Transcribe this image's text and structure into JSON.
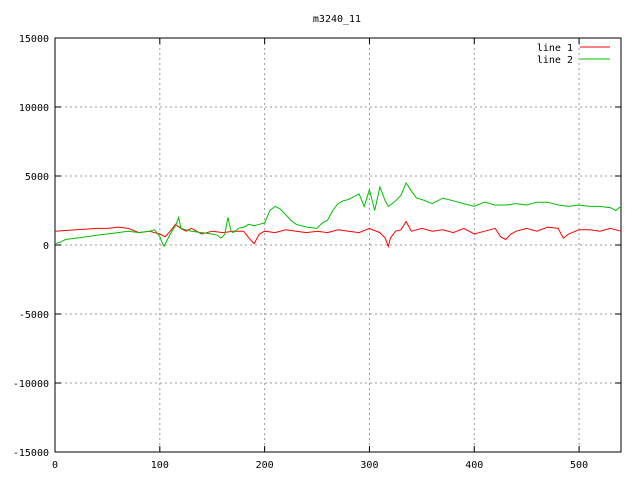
{
  "chart_data": {
    "type": "line",
    "title": "m3240_11",
    "xlabel": "",
    "ylabel": "",
    "xlim": [
      0,
      540
    ],
    "ylim": [
      -15000,
      15000
    ],
    "xticks": [
      0,
      100,
      200,
      300,
      400,
      500
    ],
    "yticks": [
      -15000,
      -10000,
      -5000,
      0,
      5000,
      10000,
      15000
    ],
    "grid": true,
    "legend_position": "top-right",
    "series": [
      {
        "name": "line 1",
        "color": "#ff0000",
        "x": [
          0,
          10,
          20,
          30,
          40,
          50,
          60,
          70,
          80,
          90,
          100,
          105,
          110,
          115,
          120,
          125,
          130,
          140,
          150,
          160,
          170,
          180,
          185,
          190,
          195,
          200,
          210,
          220,
          230,
          240,
          250,
          260,
          270,
          280,
          290,
          300,
          310,
          315,
          318,
          320,
          325,
          330,
          335,
          340,
          350,
          360,
          370,
          380,
          390,
          400,
          410,
          420,
          425,
          430,
          435,
          440,
          450,
          460,
          470,
          480,
          485,
          490,
          500,
          510,
          520,
          530,
          540
        ],
        "y": [
          1000,
          1050,
          1100,
          1150,
          1200,
          1200,
          1300,
          1200,
          900,
          1000,
          800,
          600,
          1000,
          1500,
          1200,
          1000,
          1200,
          800,
          1000,
          900,
          1000,
          1000,
          500,
          100,
          800,
          1000,
          900,
          1100,
          1000,
          900,
          1000,
          900,
          1100,
          1000,
          900,
          1200,
          900,
          500,
          -100,
          500,
          1000,
          1100,
          1700,
          1000,
          1200,
          1000,
          1100,
          900,
          1200,
          800,
          1000,
          1200,
          600,
          400,
          800,
          1000,
          1200,
          1000,
          1300,
          1200,
          500,
          800,
          1100,
          1100,
          1000,
          1200,
          1000
        ]
      },
      {
        "name": "line 2",
        "color": "#00c000",
        "x": [
          0,
          5,
          10,
          20,
          30,
          40,
          50,
          60,
          70,
          80,
          90,
          95,
          100,
          102,
          104,
          110,
          115,
          118,
          120,
          125,
          130,
          140,
          150,
          155,
          158,
          160,
          162,
          165,
          168,
          170,
          175,
          180,
          185,
          190,
          195,
          200,
          205,
          210,
          215,
          220,
          225,
          230,
          240,
          250,
          255,
          260,
          265,
          270,
          275,
          280,
          285,
          290,
          295,
          300,
          305,
          310,
          315,
          318,
          320,
          325,
          330,
          335,
          340,
          345,
          350,
          360,
          370,
          380,
          390,
          400,
          410,
          420,
          430,
          440,
          450,
          460,
          470,
          480,
          490,
          500,
          510,
          520,
          530,
          535,
          540
        ],
        "y": [
          100,
          200,
          400,
          500,
          600,
          700,
          800,
          900,
          1000,
          900,
          1000,
          1100,
          600,
          200,
          -100,
          800,
          1400,
          2000,
          1200,
          1100,
          1000,
          900,
          800,
          700,
          500,
          600,
          800,
          2000,
          1000,
          900,
          1200,
          1300,
          1500,
          1400,
          1500,
          1600,
          2500,
          2800,
          2600,
          2200,
          1800,
          1500,
          1300,
          1200,
          1600,
          1800,
          2500,
          3000,
          3200,
          3300,
          3500,
          3700,
          2800,
          4000,
          2500,
          4200,
          3200,
          2800,
          2900,
          3200,
          3600,
          4500,
          3900,
          3400,
          3300,
          3000,
          3400,
          3200,
          3000,
          2800,
          3100,
          2900,
          2900,
          3000,
          2900,
          3100,
          3100,
          2900,
          2800,
          2900,
          2800,
          2800,
          2700,
          2500,
          2800
        ]
      }
    ]
  }
}
